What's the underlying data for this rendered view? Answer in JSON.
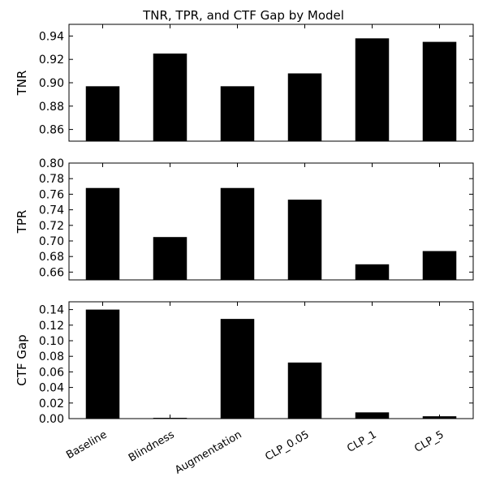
{
  "chart_data": {
    "type": "bar",
    "title": "TNR, TPR, and CTF Gap by Model",
    "categories": [
      "Baseline",
      "Blindness",
      "Augmentation",
      "CLP_0.05",
      "CLP_1",
      "CLP_5"
    ],
    "bar_color": "#000000",
    "panels": [
      {
        "ylabel": "TNR",
        "ylim": [
          0.85,
          0.95
        ],
        "yticks": [
          0.86,
          0.88,
          0.9,
          0.92,
          0.94
        ],
        "ytick_labels": [
          "0.86",
          "0.88",
          "0.90",
          "0.92",
          "0.94"
        ],
        "values": [
          0.897,
          0.925,
          0.897,
          0.908,
          0.938,
          0.935
        ]
      },
      {
        "ylabel": "TPR",
        "ylim": [
          0.65,
          0.8
        ],
        "yticks": [
          0.66,
          0.68,
          0.7,
          0.72,
          0.74,
          0.76,
          0.78,
          0.8
        ],
        "ytick_labels": [
          "0.66",
          "0.68",
          "0.70",
          "0.72",
          "0.74",
          "0.76",
          "0.78",
          "0.80"
        ],
        "values": [
          0.768,
          0.705,
          0.768,
          0.753,
          0.67,
          0.687
        ]
      },
      {
        "ylabel": "CTF Gap",
        "ylim": [
          0.0,
          0.15
        ],
        "yticks": [
          0.0,
          0.02,
          0.04,
          0.06,
          0.08,
          0.1,
          0.12,
          0.14
        ],
        "ytick_labels": [
          "0.00",
          "0.02",
          "0.04",
          "0.06",
          "0.08",
          "0.10",
          "0.12",
          "0.14"
        ],
        "values": [
          0.14,
          0.001,
          0.128,
          0.072,
          0.008,
          0.003
        ]
      }
    ]
  }
}
